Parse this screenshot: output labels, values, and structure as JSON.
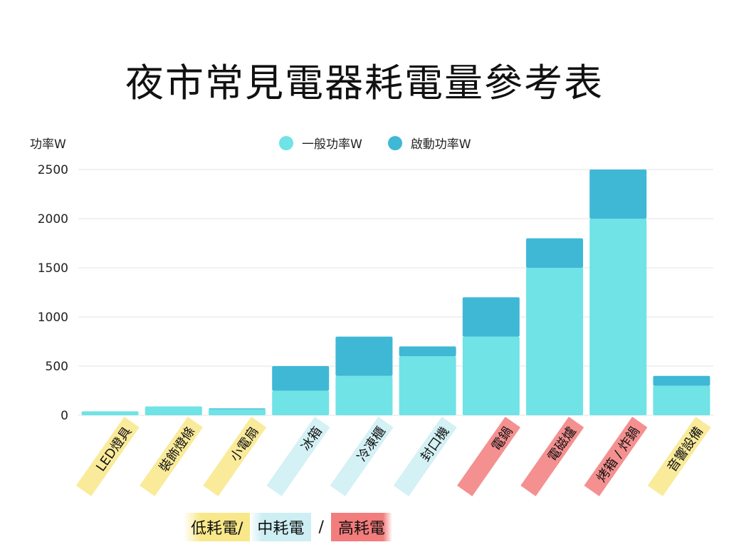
{
  "chart_data": {
    "type": "bar",
    "stacked": true,
    "title": "夜市常見電器耗電量參考表",
    "ylabel": "功率W",
    "ylim": [
      0,
      2500
    ],
    "yticks": [
      0,
      500,
      1000,
      1500,
      2000,
      2500
    ],
    "grid": true,
    "legend_position": "top-center",
    "categories": [
      "LED燈具",
      "裝飾燈條",
      "小電扇",
      "冰箱",
      "冷凍櫃",
      "封口機",
      "電鍋",
      "電磁爐",
      "烤箱 / 炸鍋",
      "音響設備"
    ],
    "category_groups": [
      "low",
      "low",
      "low",
      "mid",
      "mid",
      "mid",
      "high",
      "high",
      "high",
      "low"
    ],
    "series": [
      {
        "name": "一般功率W",
        "color": "#6fe3e6",
        "values": [
          40,
          90,
          60,
          250,
          400,
          600,
          800,
          1500,
          2000,
          300
        ]
      },
      {
        "name": "啟動功率W",
        "color": "#3fb8d6",
        "values": [
          0,
          0,
          10,
          250,
          400,
          100,
          400,
          300,
          500,
          100
        ]
      }
    ]
  },
  "category_legend": {
    "low": {
      "label": "低耗電/",
      "color": "#f9e88a"
    },
    "mid": {
      "label": "中耗電",
      "color": "#cdeef3"
    },
    "sep": "/",
    "high": {
      "label": "高耗電",
      "color": "#f37c7c"
    }
  }
}
